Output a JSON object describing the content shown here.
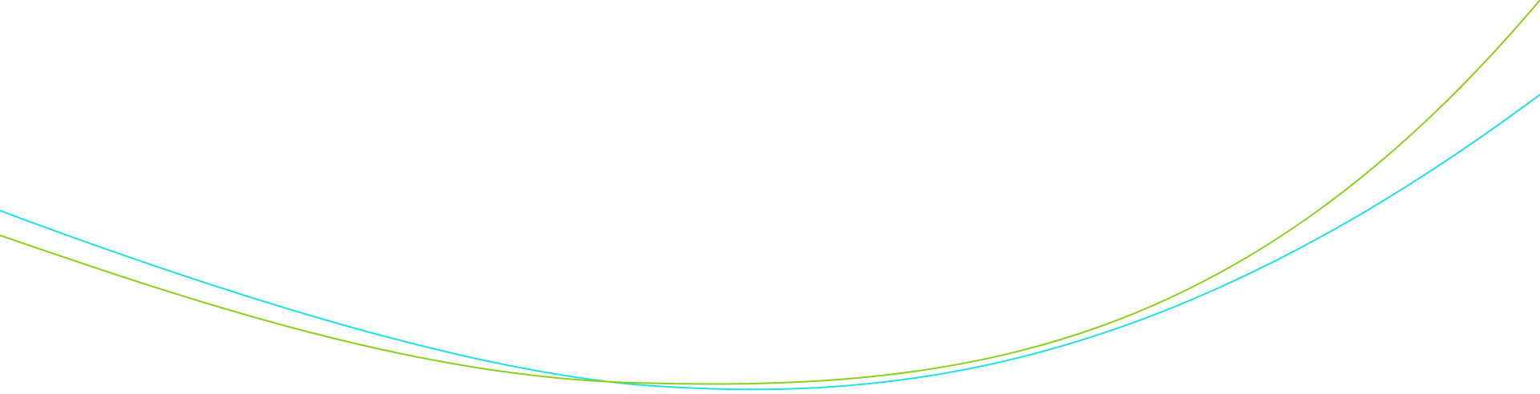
{
  "background_color": "#ffffff",
  "curves": [
    {
      "name": "cyan-wave-line",
      "color": "#1fe0e3"
    },
    {
      "name": "lime-wave-line",
      "color": "#8ccf1a"
    }
  ]
}
